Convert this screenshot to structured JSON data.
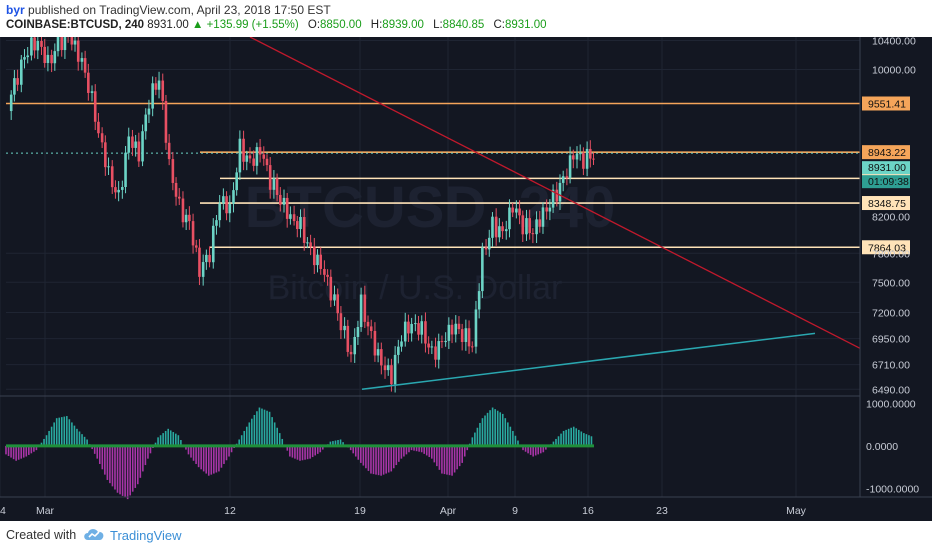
{
  "header": {
    "user": "byr",
    "published": "published on TradingView.com, April 23, 2018 17:50 EST",
    "symbol": "COINBASE:BTCUSD, 240",
    "last": "8931.00",
    "change": "▲ +135.99 (+1.55%)",
    "o_label": "O:",
    "o": "8850.00",
    "h_label": "H:",
    "h": "8939.00",
    "l_label": "L:",
    "l": "8840.85",
    "c_label": "C:",
    "c": "8931.00"
  },
  "footer": {
    "created_with": "Created with",
    "brand": "TradingView"
  },
  "watermark": {
    "ticker": "BTCUSD, 240",
    "name": "Bitcoin / U.S. Dollar"
  },
  "colors": {
    "background": "#131722",
    "up": "#6cd4c6",
    "down": "#e85063",
    "level_orange": "#f5a55a",
    "level_cream": "#ffe3b8",
    "trend_red": "#c0192c",
    "trend_teal": "#2aa7b0",
    "osc_teal": "#2ec4b6",
    "osc_magenta": "#c23bbf",
    "osc_zero_green": "#1f8f3a"
  },
  "chart_data": [
    {
      "type": "candlestick",
      "symbol": "COINBASE:BTCUSD",
      "interval": "240",
      "title": "Bitcoin / U.S. Dollar",
      "ylim": [
        6440,
        10450
      ],
      "yscale": "log",
      "price_ticks": [
        "10400.00",
        "10000.00",
        "6490.00",
        "9551.41",
        "8943.22",
        "8931.00",
        "01:09:38",
        "8631.73",
        "8348.75",
        "8200.00",
        "7864.03",
        "7800.00",
        "7500.00",
        "7200.00",
        "6950.00",
        "6710.00"
      ],
      "x_ticks": [
        "Mar",
        "12",
        "19",
        "Apr",
        "9",
        "16",
        "23",
        "May",
        "14"
      ],
      "series_close": [
        9550,
        9900,
        10300,
        10400,
        10100,
        10350,
        10450,
        10200,
        9800,
        9200,
        8700,
        8400,
        9100,
        8900,
        9600,
        9900,
        8800,
        8300,
        8100,
        7600,
        7800,
        8400,
        8300,
        9000,
        8800,
        8950,
        8600,
        8400,
        8200,
        8100,
        7800,
        7650,
        7400,
        7100,
        6800,
        7300,
        6950,
        6700,
        6600,
        7000,
        7100,
        7050,
        6800,
        6900,
        7050,
        7000,
        6900,
        7800,
        8100,
        8000,
        8300,
        8100,
        8050,
        8250,
        8400,
        8600,
        8900,
        8850,
        8931
      ],
      "horizontal_levels": [
        {
          "price": 9551.41,
          "label": "9551.41",
          "color": "#f5a55a"
        },
        {
          "price": 8943.22,
          "label": "8943.22",
          "color": "#f5a55a"
        },
        {
          "price": 8631.73,
          "label": "8631.73",
          "color": "#ffe3b8"
        },
        {
          "price": 8348.75,
          "label": "8348.75",
          "color": "#ffe3b8"
        },
        {
          "price": 7864.03,
          "label": "7864.03",
          "color": "#ffe3b8"
        }
      ],
      "last_price_label": "8931.00",
      "countdown_label": "01:09:38",
      "trendlines": [
        {
          "name": "descending resistance",
          "from": [
            "Mar 5",
            10450
          ],
          "to": [
            "May 20",
            6860
          ],
          "color": "#c0192c"
        },
        {
          "name": "ascending support",
          "from": [
            "Apr 1",
            6490
          ],
          "to": [
            "May 16",
            7000
          ],
          "color": "#2aa7b0"
        }
      ]
    },
    {
      "type": "histogram",
      "title": "",
      "ylim": [
        -1200,
        1100
      ],
      "y_ticks": [
        "1000.0000",
        "0.0000",
        "-1000.0000"
      ],
      "values": [
        -200,
        -350,
        -250,
        -100,
        250,
        650,
        700,
        400,
        150,
        -300,
        -800,
        -1100,
        -1250,
        -900,
        -300,
        200,
        400,
        250,
        -200,
        -500,
        -700,
        -600,
        -250,
        150,
        550,
        900,
        800,
        300,
        -250,
        -350,
        -300,
        -150,
        100,
        150,
        -100,
        -400,
        -650,
        -700,
        -600,
        -300,
        -100,
        -150,
        -300,
        -650,
        -700,
        -400,
        200,
        650,
        900,
        750,
        350,
        -100,
        -250,
        -150,
        100,
        350,
        450,
        300,
        200
      ]
    }
  ]
}
